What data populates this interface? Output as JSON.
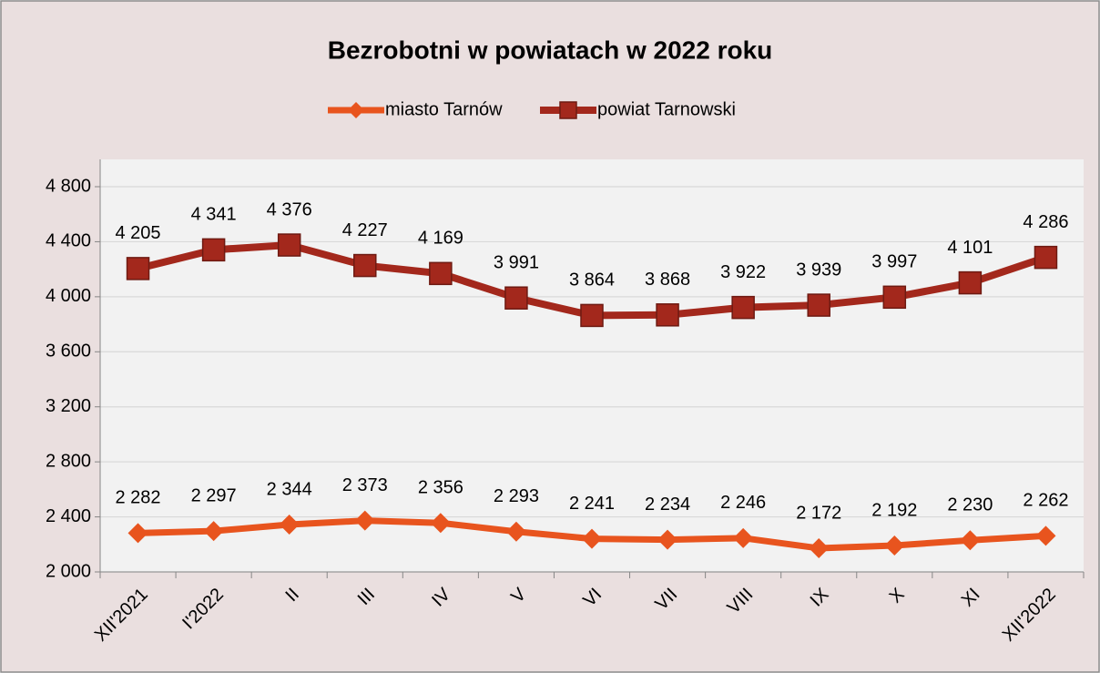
{
  "chart_data": {
    "type": "line",
    "title": "Bezrobotni w powiatach w 2022 roku",
    "categories": [
      "XII'2021",
      "I'2022",
      "II",
      "III",
      "IV",
      "V",
      "VI",
      "VII",
      "VIII",
      "IX",
      "X",
      "XI",
      "XII'2022"
    ],
    "series": [
      {
        "name": "miasto Tarnów",
        "color": "#e8541e",
        "marker": "diamond",
        "values": [
          2282,
          2297,
          2344,
          2373,
          2356,
          2293,
          2241,
          2234,
          2246,
          2172,
          2192,
          2230,
          2262
        ],
        "value_labels": [
          "2 282",
          "2 297",
          "2 344",
          "2 373",
          "2 356",
          "2 293",
          "2 241",
          "2 234",
          "2 246",
          "2 172",
          "2 192",
          "2 230",
          "2 262"
        ]
      },
      {
        "name": "powiat Tarnowski",
        "color": "#a3281c",
        "marker": "square",
        "values": [
          4205,
          4341,
          4376,
          4227,
          4169,
          3991,
          3864,
          3868,
          3922,
          3939,
          3997,
          4101,
          4286
        ],
        "value_labels": [
          "4 205",
          "4 341",
          "4 376",
          "4 227",
          "4 169",
          "3 991",
          "3 864",
          "3 868",
          "3 922",
          "3 939",
          "3 997",
          "4 101",
          "4 286"
        ]
      }
    ],
    "ylim": [
      2000,
      4800
    ],
    "yticks": [
      {
        "value": 2000,
        "label": "2 000"
      },
      {
        "value": 2400,
        "label": "2 400"
      },
      {
        "value": 2800,
        "label": "2 800"
      },
      {
        "value": 3200,
        "label": "3 200"
      },
      {
        "value": 3600,
        "label": "3 600"
      },
      {
        "value": 4000,
        "label": "4 000"
      },
      {
        "value": 4400,
        "label": "4 400"
      },
      {
        "value": 4800,
        "label": "4 800"
      }
    ],
    "grid": true,
    "legend": "top"
  }
}
